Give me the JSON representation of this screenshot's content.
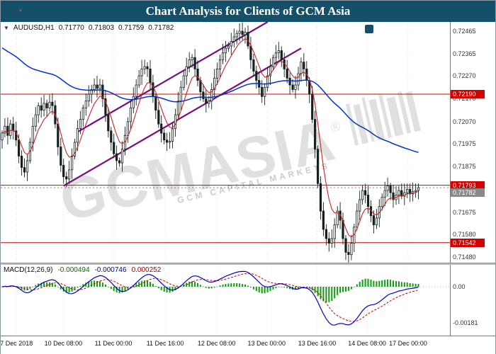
{
  "title_bar": {
    "title": "Chart Analysis for Clients of GCM Asia",
    "bg_color": "#15506b"
  },
  "header": {
    "symbol": "AUDUSD,H1",
    "open": "0.71770",
    "high": "0.71803",
    "low": "0.71759",
    "close": "0.71782"
  },
  "watermark": {
    "text": "GCMASIA",
    "reg": "®",
    "subtext": "GCM CAPITAL MARKETS"
  },
  "icons": {
    "title_accent": "▪",
    "chart_icon": "▼"
  },
  "time_axis": {
    "labels": [
      {
        "text": "7 Dec 2018",
        "pos": 0.035
      },
      {
        "text": "10 Dec 08:00",
        "pos": 0.139
      },
      {
        "text": "11 Dec 00:00",
        "pos": 0.25
      },
      {
        "text": "11 Dec 16:00",
        "pos": 0.365
      },
      {
        "text": "12 Dec 08:00",
        "pos": 0.479
      },
      {
        "text": "13 Dec 00:00",
        "pos": 0.59
      },
      {
        "text": "13 Dec 16:00",
        "pos": 0.702
      },
      {
        "text": "14 Dec 08:00",
        "pos": 0.813
      },
      {
        "text": "17 Dec 00:00",
        "pos": 0.904
      }
    ]
  },
  "chart_data": {
    "type": "candlestick",
    "symbol": "AUDUSD",
    "timeframe": "H1",
    "ohlc_current": {
      "open": 0.7177,
      "high": 0.71803,
      "low": 0.71759,
      "close": 0.71782
    },
    "main": {
      "y_min": 0.71455,
      "y_max": 0.72505,
      "x_fill": 0.93,
      "open0": 0.7199,
      "closes": [
        0.7202,
        0.7205,
        0.7201,
        0.7206,
        0.7203,
        0.7199,
        0.7192,
        0.7187,
        0.7185,
        0.719,
        0.7198,
        0.7205,
        0.721,
        0.7214,
        0.7212,
        0.7215,
        0.7213,
        0.72155,
        0.7214,
        0.7206,
        0.7196,
        0.7188,
        0.7183,
        0.7182,
        0.7186,
        0.7192,
        0.7198,
        0.7204,
        0.7208,
        0.7213,
        0.7216,
        0.7219,
        0.7221,
        0.7223,
        0.72215,
        0.7223,
        0.7217,
        0.721,
        0.7203,
        0.7198,
        0.7193,
        0.719,
        0.7189,
        0.7195,
        0.7201,
        0.7207,
        0.7213,
        0.7218,
        0.7223,
        0.7227,
        0.723,
        0.7231,
        0.723,
        0.7224,
        0.7218,
        0.7212,
        0.7206,
        0.7202,
        0.7199,
        0.7198,
        0.71985,
        0.7204,
        0.721,
        0.7216,
        0.7222,
        0.7227,
        0.7231,
        0.7234,
        0.7235,
        0.723,
        0.7225,
        0.722,
        0.7217,
        0.7215,
        0.7216,
        0.7221,
        0.7226,
        0.723,
        0.7234,
        0.7237,
        0.7239,
        0.724,
        0.7242,
        0.7244,
        0.72455,
        0.72465,
        0.7245,
        0.7246,
        0.724,
        0.7234,
        0.7229,
        0.7225,
        0.7222,
        0.7218,
        0.7222,
        0.7227,
        0.7231,
        0.7235,
        0.7237,
        0.7238,
        0.7234,
        0.723,
        0.7226,
        0.7223,
        0.7221,
        0.7223,
        0.7228,
        0.7233,
        0.723,
        0.7225,
        0.7219,
        0.7208,
        0.7195,
        0.718,
        0.7168,
        0.716,
        0.7156,
        0.7154,
        0.7156,
        0.7162,
        0.7168,
        0.7164,
        0.7156,
        0.715,
        0.7149,
        0.7154,
        0.7161,
        0.7168,
        0.7173,
        0.7177,
        0.7175,
        0.717,
        0.7166,
        0.7162,
        0.7165,
        0.717,
        0.7174,
        0.7177,
        0.7179,
        0.7176,
        0.7173,
        0.7175,
        0.7177,
        0.71745,
        0.7176,
        0.71775,
        0.71755,
        0.71765,
        0.7177,
        0.71782
      ],
      "ticks": [
        {
          "value": 0.72465,
          "label": "0.72465"
        },
        {
          "value": 0.72365,
          "label": "0.72365"
        },
        {
          "value": 0.7227,
          "label": "0.72270"
        },
        {
          "value": 0.7217,
          "label": "0.72170"
        },
        {
          "value": 0.7207,
          "label": "0.72070"
        },
        {
          "value": 0.71975,
          "label": "0.71975"
        },
        {
          "value": 0.71875,
          "label": "0.71875"
        },
        {
          "value": 0.7178,
          "label": "0.71780"
        },
        {
          "value": 0.71675,
          "label": "0.71675"
        },
        {
          "value": 0.7158,
          "label": "0.71580"
        },
        {
          "value": 0.7148,
          "label": "0.71480"
        }
      ],
      "levels": [
        {
          "price": 0.7219,
          "label": "0.72190",
          "color": "#d40000"
        },
        {
          "price": 0.71793,
          "label": "0.71793",
          "color": "#d40000"
        },
        {
          "price": 0.71542,
          "label": "0.71542",
          "color": "#d40000"
        }
      ],
      "bid": {
        "price": 0.71782,
        "label": "0.71782",
        "color": "#8a8a8a"
      },
      "channel": {
        "color": "#7a0d7a",
        "lower": [
          [
            22,
            0.7179
          ],
          [
            107,
            0.7239
          ]
        ],
        "upper": [
          [
            27,
            0.72025
          ],
          [
            95,
            0.72505
          ]
        ]
      },
      "ma_fast": {
        "period": 7,
        "color": "#cc2222"
      },
      "ma_slow": {
        "period": 90,
        "seed": 0.724,
        "color": "#0033cc"
      }
    },
    "macd": {
      "label": "MACD(12,26,9)",
      "fast": 12,
      "slow": 26,
      "signal": 9,
      "values_text": [
        "-0.000494",
        "-0.000746",
        "0.000252"
      ],
      "y_min": -0.00245,
      "y_max": 0.0011,
      "ticks": [
        {
          "value": 0,
          "label": "0.00"
        },
        {
          "value": -0.00181,
          "label": "-0.00181"
        }
      ],
      "colors": {
        "histogram": "#0f9d0f",
        "macd_line": "#0000c8",
        "signal_line": "#cc0000"
      }
    }
  }
}
